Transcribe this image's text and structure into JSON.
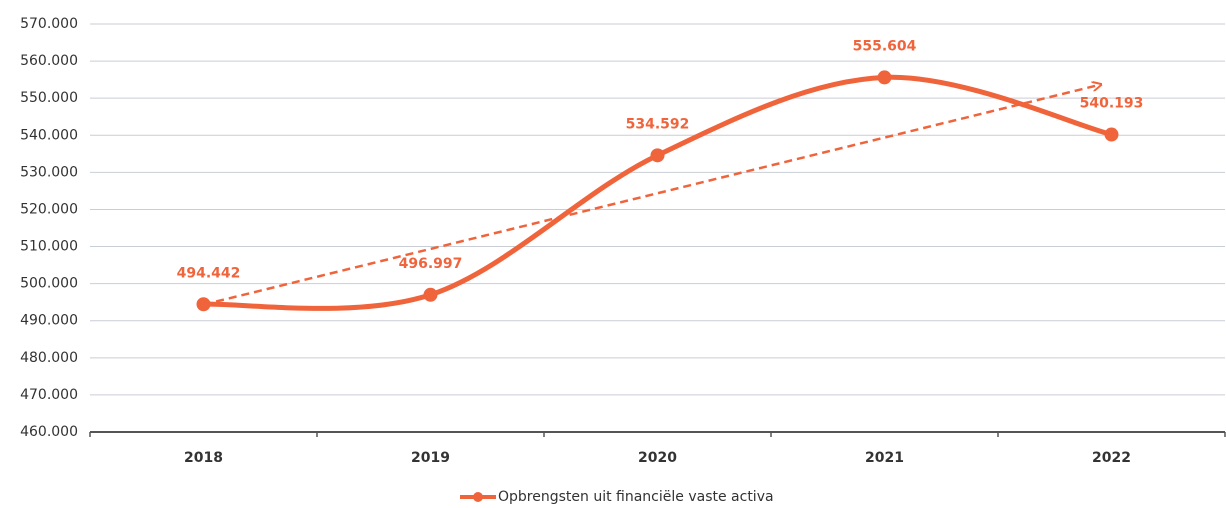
{
  "chart_data": {
    "type": "line",
    "categories": [
      "2018",
      "2019",
      "2020",
      "2021",
      "2022"
    ],
    "series": [
      {
        "name": "Opbrengsten uit financiële vaste activa",
        "color": "#f0643c",
        "values": [
          494442,
          496997,
          534592,
          555604,
          540193
        ],
        "value_labels": [
          "494.442",
          "496.997",
          "534.592",
          "555.604",
          "540.193"
        ]
      }
    ],
    "ylim": [
      460000,
      570000
    ],
    "yticks": [
      {
        "value": 460000,
        "label": "460.000"
      },
      {
        "value": 470000,
        "label": "470.000"
      },
      {
        "value": 480000,
        "label": "480.000"
      },
      {
        "value": 490000,
        "label": "490.000"
      },
      {
        "value": 500000,
        "label": "500.000"
      },
      {
        "value": 510000,
        "label": "510.000"
      },
      {
        "value": 520000,
        "label": "520.000"
      },
      {
        "value": 530000,
        "label": "530.000"
      },
      {
        "value": 540000,
        "label": "540.000"
      },
      {
        "value": 550000,
        "label": "550.000"
      },
      {
        "value": 560000,
        "label": "560.000"
      },
      {
        "value": 570000,
        "label": "570.000"
      }
    ],
    "grid": true,
    "smooth": true,
    "trendline": true,
    "legend": "bottom"
  }
}
